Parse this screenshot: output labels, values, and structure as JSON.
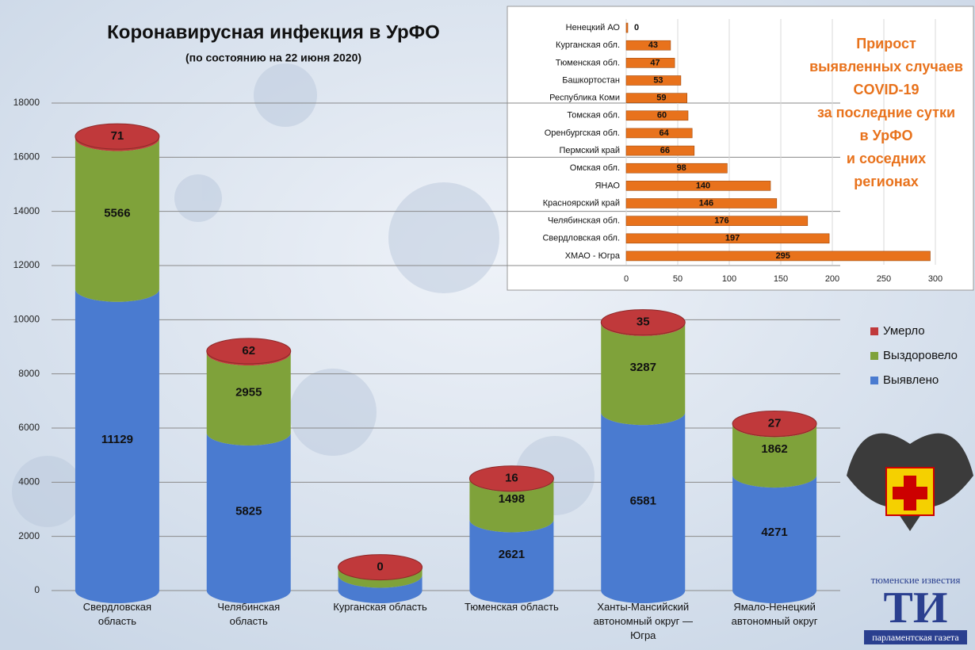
{
  "chart_data": [
    {
      "type": "bar",
      "title": "Коронавирусная инфекция в УрФО",
      "subtitle": "(по состоянию на 22 июня 2020)",
      "categories": [
        "Свердловская область",
        "Челябинская область",
        "Курганская область",
        "Тюменская область",
        "Ханты-Мансийский автономный округ — Югра",
        "Ямало-Ненецкий автономный округ"
      ],
      "series": [
        {
          "name": "Выявлено",
          "color": "#4a7bd0",
          "values": [
            11129,
            5825,
            571,
            2621,
            6581,
            4271
          ]
        },
        {
          "name": "Выздоровело",
          "color": "#7fa23a",
          "values": [
            5566,
            2955,
            290,
            1498,
            3287,
            1862
          ]
        },
        {
          "name": "Умерло",
          "color": "#c0393b",
          "values": [
            71,
            62,
            0,
            16,
            35,
            27
          ]
        }
      ],
      "stacked": true,
      "ylim": [
        0,
        18000
      ],
      "yticks": [
        0,
        2000,
        4000,
        6000,
        8000,
        10000,
        12000,
        14000,
        16000,
        18000
      ],
      "grid": true,
      "legend": "right"
    },
    {
      "type": "barh",
      "title": [
        "Прирост",
        "выявленных случаев",
        "COVID-19",
        "за последние сутки",
        "в УрФО",
        "и соседних",
        "регионах"
      ],
      "categories": [
        "Ненецкий АО",
        "Курганская обл.",
        "Тюменская обл.",
        "Башкортостан",
        "Республика Коми",
        "Томская обл.",
        "Оренбургская обл.",
        "Пермский край",
        "Омская обл.",
        "ЯНАО",
        "Красноярский край",
        "Челябинская обл.",
        "Свердловская обл.",
        "ХМАО - Югра"
      ],
      "values": [
        0,
        43,
        47,
        53,
        59,
        60,
        64,
        66,
        98,
        140,
        146,
        176,
        197,
        295
      ],
      "color": "#e8721c",
      "xlim": [
        0,
        300
      ],
      "xticks": [
        0,
        50,
        100,
        150,
        200,
        250,
        300
      ],
      "grid": true
    }
  ],
  "logo": {
    "top": "тюменские известия",
    "mark": "ТИ",
    "bottom": "парламентская газета"
  }
}
